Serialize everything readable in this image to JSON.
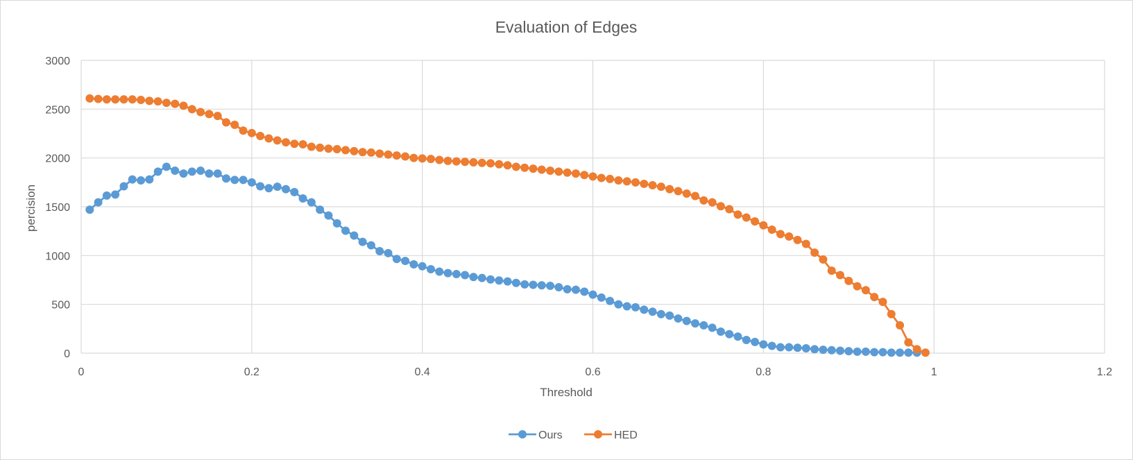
{
  "chart_data": {
    "type": "scatter",
    "title": "Evaluation of Edges",
    "xlabel": "Threshold",
    "ylabel": "percision",
    "xlim": [
      0,
      1.2
    ],
    "ylim": [
      0,
      3000
    ],
    "x_ticks": [
      "0",
      "0.2",
      "0.4",
      "0.6",
      "0.8",
      "1",
      "1.2"
    ],
    "y_ticks": [
      "0",
      "500",
      "1000",
      "1500",
      "2000",
      "2500",
      "3000"
    ],
    "grid": true,
    "legend_position": "bottom",
    "series": [
      {
        "name": "Ours",
        "color": "#5b9bd5",
        "points": [
          [
            0.01,
            1470
          ],
          [
            0.02,
            1545
          ],
          [
            0.03,
            1615
          ],
          [
            0.04,
            1625
          ],
          [
            0.05,
            1710
          ],
          [
            0.06,
            1780
          ],
          [
            0.07,
            1770
          ],
          [
            0.08,
            1780
          ],
          [
            0.09,
            1860
          ],
          [
            0.1,
            1910
          ],
          [
            0.11,
            1870
          ],
          [
            0.12,
            1840
          ],
          [
            0.13,
            1860
          ],
          [
            0.14,
            1870
          ],
          [
            0.15,
            1840
          ],
          [
            0.16,
            1840
          ],
          [
            0.17,
            1790
          ],
          [
            0.18,
            1775
          ],
          [
            0.19,
            1775
          ],
          [
            0.2,
            1750
          ],
          [
            0.21,
            1710
          ],
          [
            0.22,
            1690
          ],
          [
            0.23,
            1705
          ],
          [
            0.24,
            1680
          ],
          [
            0.25,
            1650
          ],
          [
            0.26,
            1585
          ],
          [
            0.27,
            1545
          ],
          [
            0.28,
            1470
          ],
          [
            0.29,
            1410
          ],
          [
            0.3,
            1330
          ],
          [
            0.31,
            1255
          ],
          [
            0.32,
            1205
          ],
          [
            0.33,
            1140
          ],
          [
            0.34,
            1105
          ],
          [
            0.35,
            1045
          ],
          [
            0.36,
            1025
          ],
          [
            0.37,
            965
          ],
          [
            0.38,
            945
          ],
          [
            0.39,
            910
          ],
          [
            0.4,
            890
          ],
          [
            0.41,
            860
          ],
          [
            0.42,
            835
          ],
          [
            0.43,
            820
          ],
          [
            0.44,
            810
          ],
          [
            0.45,
            800
          ],
          [
            0.46,
            780
          ],
          [
            0.47,
            770
          ],
          [
            0.48,
            755
          ],
          [
            0.49,
            745
          ],
          [
            0.5,
            735
          ],
          [
            0.51,
            720
          ],
          [
            0.52,
            705
          ],
          [
            0.53,
            700
          ],
          [
            0.54,
            695
          ],
          [
            0.55,
            690
          ],
          [
            0.56,
            675
          ],
          [
            0.57,
            655
          ],
          [
            0.58,
            650
          ],
          [
            0.59,
            630
          ],
          [
            0.6,
            600
          ],
          [
            0.61,
            570
          ],
          [
            0.62,
            535
          ],
          [
            0.63,
            500
          ],
          [
            0.64,
            480
          ],
          [
            0.65,
            470
          ],
          [
            0.66,
            445
          ],
          [
            0.67,
            425
          ],
          [
            0.68,
            400
          ],
          [
            0.69,
            385
          ],
          [
            0.7,
            355
          ],
          [
            0.71,
            330
          ],
          [
            0.72,
            305
          ],
          [
            0.73,
            285
          ],
          [
            0.74,
            260
          ],
          [
            0.75,
            220
          ],
          [
            0.76,
            195
          ],
          [
            0.77,
            170
          ],
          [
            0.78,
            135
          ],
          [
            0.79,
            115
          ],
          [
            0.8,
            90
          ],
          [
            0.81,
            75
          ],
          [
            0.82,
            60
          ],
          [
            0.83,
            60
          ],
          [
            0.84,
            55
          ],
          [
            0.85,
            50
          ],
          [
            0.86,
            40
          ],
          [
            0.87,
            35
          ],
          [
            0.88,
            30
          ],
          [
            0.89,
            25
          ],
          [
            0.9,
            20
          ],
          [
            0.91,
            15
          ],
          [
            0.92,
            15
          ],
          [
            0.93,
            10
          ],
          [
            0.94,
            10
          ],
          [
            0.95,
            5
          ],
          [
            0.96,
            5
          ],
          [
            0.97,
            5
          ],
          [
            0.98,
            5
          ]
        ]
      },
      {
        "name": "HED",
        "color": "#ed7d31",
        "points": [
          [
            0.01,
            2610
          ],
          [
            0.02,
            2605
          ],
          [
            0.03,
            2600
          ],
          [
            0.04,
            2600
          ],
          [
            0.05,
            2600
          ],
          [
            0.06,
            2600
          ],
          [
            0.07,
            2595
          ],
          [
            0.08,
            2585
          ],
          [
            0.09,
            2580
          ],
          [
            0.1,
            2565
          ],
          [
            0.11,
            2555
          ],
          [
            0.12,
            2535
          ],
          [
            0.13,
            2500
          ],
          [
            0.14,
            2470
          ],
          [
            0.15,
            2450
          ],
          [
            0.16,
            2430
          ],
          [
            0.17,
            2365
          ],
          [
            0.18,
            2340
          ],
          [
            0.19,
            2280
          ],
          [
            0.2,
            2255
          ],
          [
            0.21,
            2225
          ],
          [
            0.22,
            2200
          ],
          [
            0.23,
            2180
          ],
          [
            0.24,
            2160
          ],
          [
            0.25,
            2145
          ],
          [
            0.26,
            2140
          ],
          [
            0.27,
            2115
          ],
          [
            0.28,
            2105
          ],
          [
            0.29,
            2095
          ],
          [
            0.3,
            2090
          ],
          [
            0.31,
            2080
          ],
          [
            0.32,
            2070
          ],
          [
            0.33,
            2060
          ],
          [
            0.34,
            2055
          ],
          [
            0.35,
            2045
          ],
          [
            0.36,
            2035
          ],
          [
            0.37,
            2025
          ],
          [
            0.38,
            2015
          ],
          [
            0.39,
            2000
          ],
          [
            0.4,
            1995
          ],
          [
            0.41,
            1990
          ],
          [
            0.42,
            1980
          ],
          [
            0.43,
            1970
          ],
          [
            0.44,
            1965
          ],
          [
            0.45,
            1960
          ],
          [
            0.46,
            1955
          ],
          [
            0.47,
            1950
          ],
          [
            0.48,
            1945
          ],
          [
            0.49,
            1935
          ],
          [
            0.5,
            1925
          ],
          [
            0.51,
            1910
          ],
          [
            0.52,
            1900
          ],
          [
            0.53,
            1890
          ],
          [
            0.54,
            1880
          ],
          [
            0.55,
            1870
          ],
          [
            0.56,
            1860
          ],
          [
            0.57,
            1850
          ],
          [
            0.58,
            1840
          ],
          [
            0.59,
            1825
          ],
          [
            0.6,
            1810
          ],
          [
            0.61,
            1795
          ],
          [
            0.62,
            1785
          ],
          [
            0.63,
            1770
          ],
          [
            0.64,
            1760
          ],
          [
            0.65,
            1750
          ],
          [
            0.66,
            1735
          ],
          [
            0.67,
            1720
          ],
          [
            0.68,
            1705
          ],
          [
            0.69,
            1680
          ],
          [
            0.7,
            1660
          ],
          [
            0.71,
            1635
          ],
          [
            0.72,
            1610
          ],
          [
            0.73,
            1565
          ],
          [
            0.74,
            1545
          ],
          [
            0.75,
            1505
          ],
          [
            0.76,
            1475
          ],
          [
            0.77,
            1420
          ],
          [
            0.78,
            1390
          ],
          [
            0.79,
            1350
          ],
          [
            0.8,
            1310
          ],
          [
            0.81,
            1265
          ],
          [
            0.82,
            1220
          ],
          [
            0.83,
            1195
          ],
          [
            0.84,
            1160
          ],
          [
            0.85,
            1120
          ],
          [
            0.86,
            1030
          ],
          [
            0.87,
            960
          ],
          [
            0.88,
            845
          ],
          [
            0.89,
            800
          ],
          [
            0.9,
            740
          ],
          [
            0.91,
            685
          ],
          [
            0.92,
            645
          ],
          [
            0.93,
            575
          ],
          [
            0.94,
            525
          ],
          [
            0.95,
            400
          ],
          [
            0.96,
            285
          ],
          [
            0.97,
            110
          ],
          [
            0.98,
            40
          ],
          [
            0.99,
            5
          ]
        ]
      }
    ]
  }
}
